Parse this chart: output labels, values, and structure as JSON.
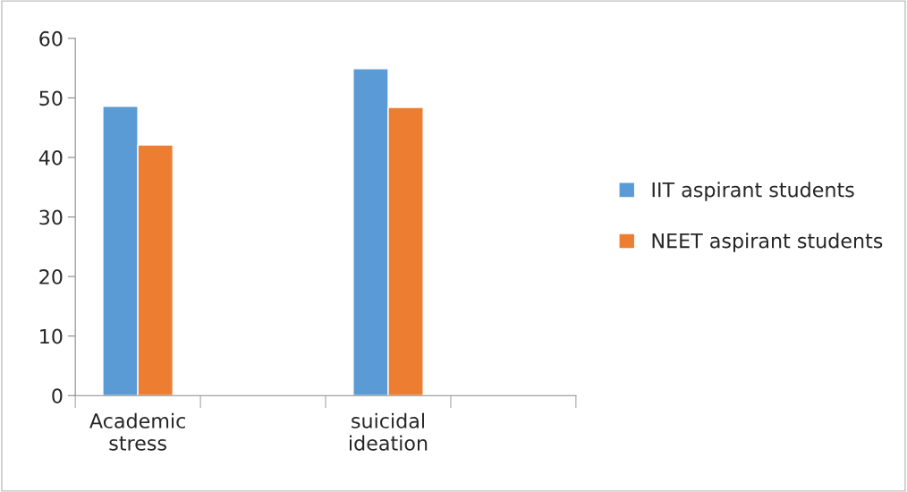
{
  "chart_data": {
    "type": "bar",
    "categories": [
      "Academic\nstress",
      null,
      "suicidal\nideation",
      null
    ],
    "series": [
      {
        "name": "IIT aspirant students",
        "color": "#5b9bd5",
        "values": [
          48.6,
          null,
          54.9,
          null
        ]
      },
      {
        "name": "NEET aspirant students",
        "color": "#ed7d31",
        "values": [
          42.1,
          null,
          48.4,
          null
        ]
      }
    ],
    "ylim": [
      0,
      60
    ],
    "yticks": [
      0,
      10,
      20,
      30,
      40,
      50,
      60
    ],
    "grid": false,
    "legend": "right"
  }
}
